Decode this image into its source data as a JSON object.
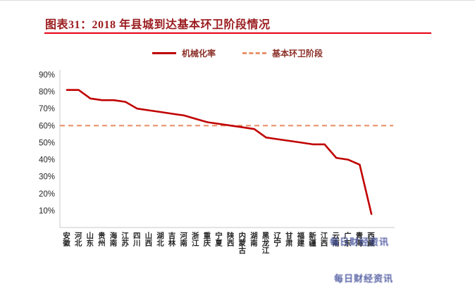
{
  "page": {
    "title": "图表31：2018 年县城到达基本环卫阶段情况"
  },
  "legend": {
    "series1_label": "机械化率",
    "series2_label": "基本环卫阶段"
  },
  "watermark": {
    "line1": "每日财经资讯",
    "line2": "每日财经资讯"
  },
  "colors": {
    "mechanization_line": "#c00000",
    "threshold_line": "#e8926b",
    "title_text": "#9a1b1e",
    "title_underline": "#e60012",
    "axis_text": "#262626",
    "axis_line": "#c9c9c9"
  },
  "chart_data": {
    "type": "line",
    "title": "图表31：2018 年县城到达基本环卫阶段情况",
    "categories": [
      "安徽",
      "河北",
      "山东",
      "贵州",
      "海南",
      "江苏",
      "四川",
      "山西",
      "湖北",
      "吉林",
      "河南",
      "浙江",
      "重庆",
      "宁夏",
      "陕西",
      "内蒙古",
      "湖南",
      "黑龙江",
      "辽宁",
      "甘肃",
      "福建",
      "新疆",
      "江西",
      "云南",
      "广东",
      "青海",
      "西藏"
    ],
    "series": [
      {
        "name": "机械化率",
        "style": "solid",
        "color": "#c00000",
        "values": [
          81,
          81,
          76,
          75,
          75,
          74,
          70,
          69,
          68,
          67,
          66,
          64,
          62,
          61,
          60,
          59,
          58,
          53,
          52,
          51,
          50,
          49,
          49,
          41,
          40,
          37,
          8
        ]
      },
      {
        "name": "基本环卫阶段",
        "style": "dashed",
        "color": "#e8926b",
        "threshold_value": 60
      }
    ],
    "xlabel": "",
    "ylabel": "",
    "ylim": [
      0,
      90
    ],
    "y_ticks": [
      "90%",
      "80%",
      "70%",
      "60%",
      "50%",
      "40%",
      "30%",
      "20%",
      "10%"
    ],
    "y_tick_values": [
      90,
      80,
      70,
      60,
      50,
      40,
      30,
      20,
      10
    ],
    "grid": false,
    "legend_position": "top"
  }
}
